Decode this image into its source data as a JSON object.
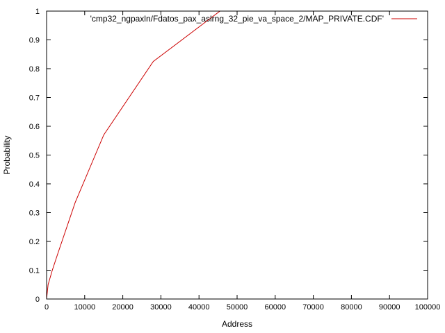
{
  "chart_data": {
    "type": "line",
    "title": "",
    "xlabel": "Address",
    "ylabel": "Probability",
    "xlim": [
      0,
      100000
    ],
    "ylim": [
      0,
      1
    ],
    "x_ticks": [
      0,
      10000,
      20000,
      30000,
      40000,
      50000,
      60000,
      70000,
      80000,
      90000,
      100000
    ],
    "x_tick_labels": [
      "0",
      "10000",
      "20000",
      "30000",
      "40000",
      "50000",
      "60000",
      "70000",
      "80000",
      "90000",
      "100000"
    ],
    "y_ticks": [
      0,
      0.1,
      0.2,
      0.3,
      0.4,
      0.5,
      0.6,
      0.7,
      0.8,
      0.9,
      1
    ],
    "y_tick_labels": [
      "0",
      "0.1",
      "0.2",
      "0.3",
      "0.4",
      "0.5",
      "0.6",
      "0.7",
      "0.8",
      "0.9",
      "1"
    ],
    "grid": false,
    "legend_position": "top-right",
    "series": [
      {
        "name": "'cmp32_ngpaxln/Fdatos_pax_aslrng_32_pie_va_space_2/MAP_PRIVATE.CDF'",
        "color": "#cc0000",
        "x": [
          0,
          400,
          1500,
          3000,
          7500,
          15000,
          28000,
          45500
        ],
        "y": [
          0,
          0.05,
          0.1,
          0.16,
          0.335,
          0.57,
          0.825,
          1.0
        ]
      }
    ]
  }
}
